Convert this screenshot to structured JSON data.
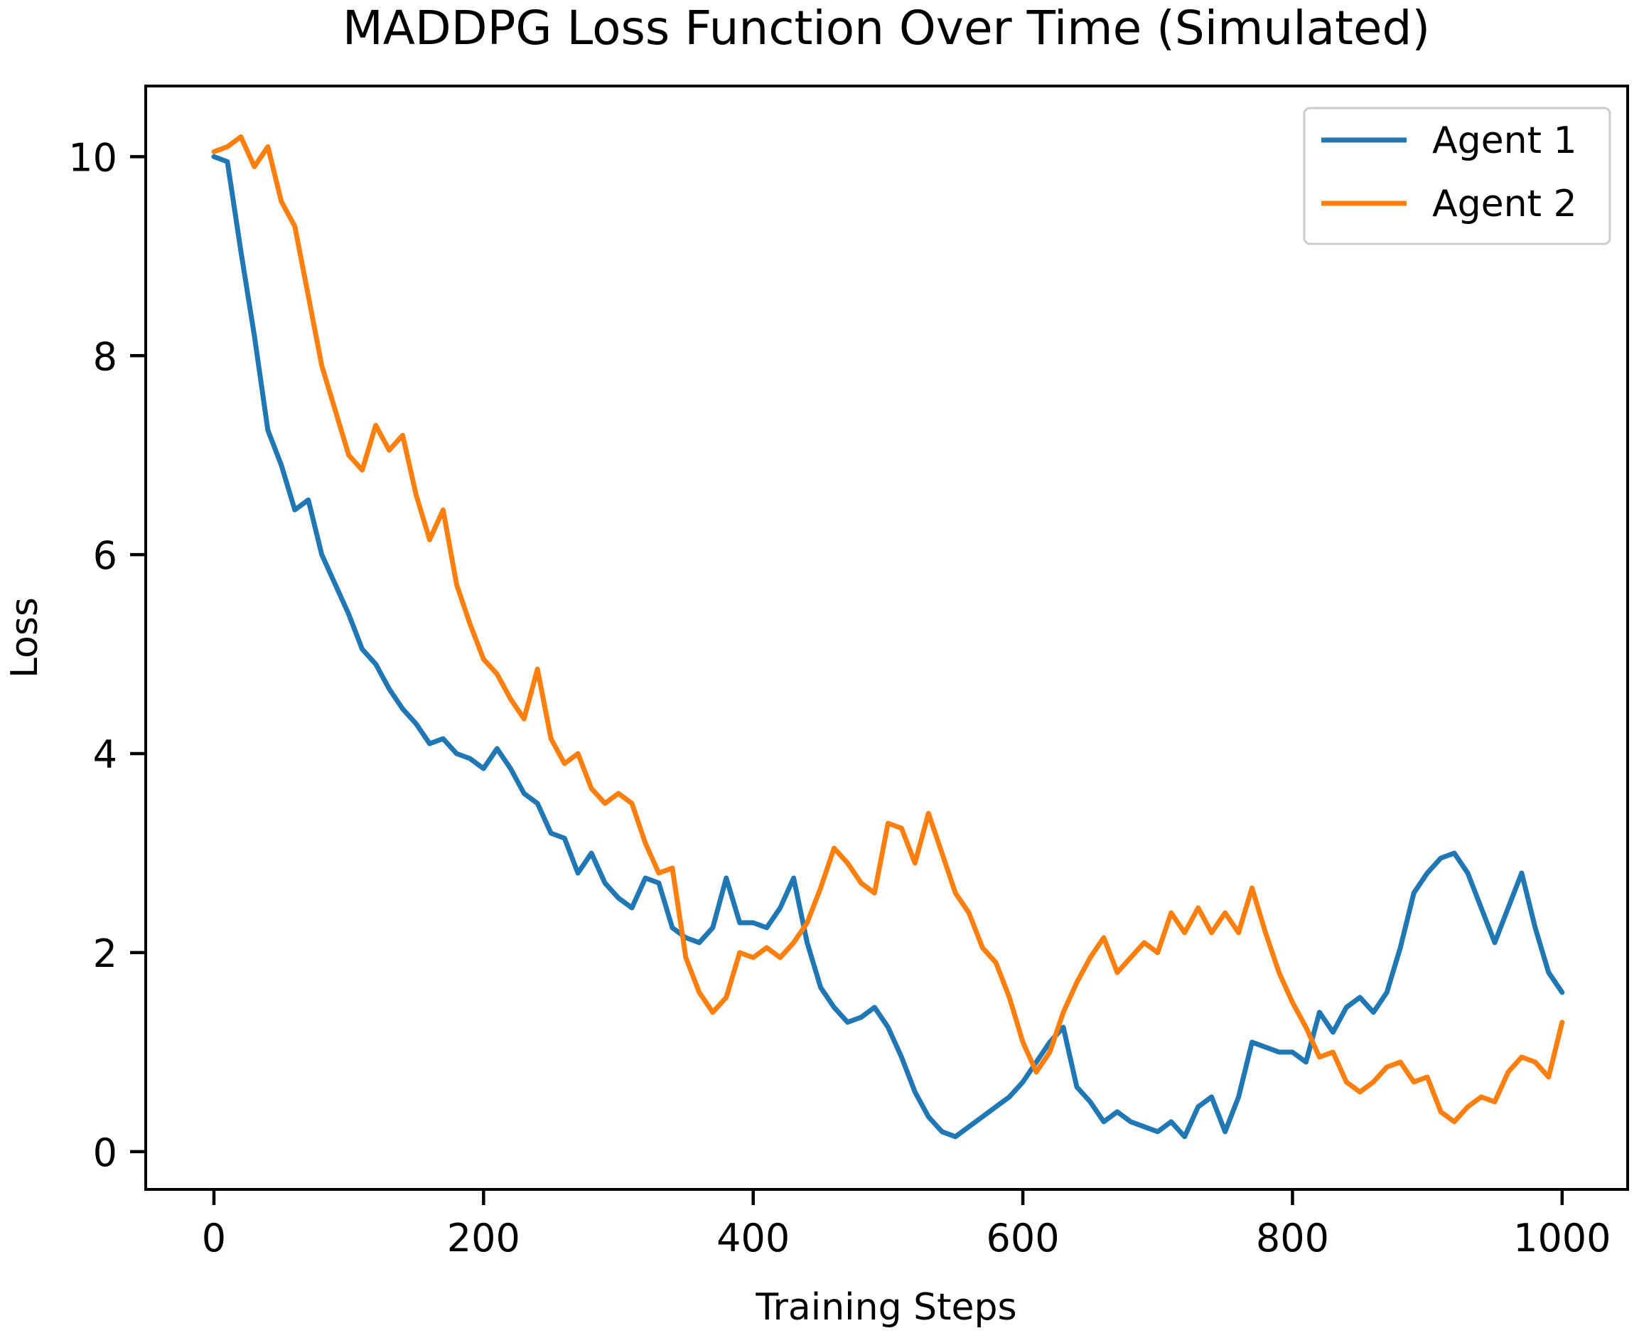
{
  "figure": {
    "title": "MADDPG Loss Function Over Time (Simulated)",
    "xlabel": "Training Steps",
    "ylabel": "Loss"
  },
  "legend": {
    "position": "upper right",
    "items": [
      {
        "label": "Agent 1",
        "color": "#1f77b4"
      },
      {
        "label": "Agent 2",
        "color": "#ff7f0e"
      }
    ]
  },
  "chart_data": {
    "type": "line",
    "title": "MADDPG Loss Function Over Time (Simulated)",
    "xlabel": "Training Steps",
    "ylabel": "Loss",
    "grid": false,
    "legend_position": "upper right",
    "xlim": [
      -50.6,
      1048.6
    ],
    "ylim": [
      -0.38,
      10.71
    ],
    "xticks": [
      0,
      200,
      400,
      600,
      800,
      1000
    ],
    "yticks": [
      0,
      2,
      4,
      6,
      8,
      10
    ],
    "background_color": "#ffffff",
    "spine_color": "#000000",
    "x": [
      0,
      10,
      20,
      30,
      40,
      50,
      60,
      70,
      80,
      90,
      100,
      110,
      120,
      130,
      140,
      150,
      160,
      170,
      180,
      190,
      200,
      210,
      220,
      230,
      240,
      250,
      260,
      270,
      280,
      290,
      300,
      310,
      320,
      330,
      340,
      350,
      360,
      370,
      380,
      390,
      400,
      410,
      420,
      430,
      440,
      450,
      460,
      470,
      480,
      490,
      500,
      510,
      520,
      530,
      540,
      550,
      560,
      570,
      580,
      590,
      600,
      610,
      620,
      630,
      640,
      650,
      660,
      670,
      680,
      690,
      700,
      710,
      720,
      730,
      740,
      750,
      760,
      770,
      780,
      790,
      800,
      810,
      820,
      830,
      840,
      850,
      860,
      870,
      880,
      890,
      900,
      910,
      920,
      930,
      940,
      950,
      960,
      970,
      980,
      990,
      1000
    ],
    "series": [
      {
        "name": "Agent 1",
        "color": "#1f77b4",
        "values": [
          10.0,
          9.95,
          9.05,
          8.2,
          7.25,
          6.9,
          6.45,
          6.55,
          6.0,
          5.7,
          5.4,
          5.05,
          4.9,
          4.65,
          4.45,
          4.3,
          4.1,
          4.15,
          4.0,
          3.95,
          3.85,
          4.05,
          3.85,
          3.6,
          3.5,
          3.2,
          3.15,
          2.8,
          3.0,
          2.7,
          2.55,
          2.45,
          2.75,
          2.7,
          2.25,
          2.15,
          2.1,
          2.25,
          2.75,
          2.3,
          2.3,
          2.25,
          2.45,
          2.75,
          2.1,
          1.65,
          1.45,
          1.3,
          1.35,
          1.45,
          1.25,
          0.95,
          0.6,
          0.35,
          0.2,
          0.15,
          0.25,
          0.35,
          0.45,
          0.55,
          0.7,
          0.9,
          1.1,
          1.25,
          0.65,
          0.5,
          0.3,
          0.4,
          0.3,
          0.25,
          0.2,
          0.3,
          0.15,
          0.45,
          0.55,
          0.2,
          0.55,
          1.1,
          1.05,
          1.0,
          1.0,
          0.9,
          1.4,
          1.2,
          1.45,
          1.55,
          1.4,
          1.6,
          2.05,
          2.6,
          2.8,
          2.95,
          3.0,
          2.8,
          2.45,
          2.1,
          2.45,
          2.8,
          2.25,
          1.8,
          1.6
        ]
      },
      {
        "name": "Agent 2",
        "color": "#ff7f0e",
        "values": [
          10.05,
          10.1,
          10.2,
          9.9,
          10.1,
          9.55,
          9.3,
          8.6,
          7.9,
          7.45,
          7.0,
          6.85,
          7.3,
          7.05,
          7.2,
          6.6,
          6.15,
          6.45,
          5.7,
          5.3,
          4.95,
          4.8,
          4.55,
          4.35,
          4.85,
          4.15,
          3.9,
          4.0,
          3.65,
          3.5,
          3.6,
          3.5,
          3.1,
          2.8,
          2.85,
          1.95,
          1.6,
          1.4,
          1.55,
          2.0,
          1.95,
          2.05,
          1.95,
          2.1,
          2.3,
          2.65,
          3.05,
          2.9,
          2.7,
          2.6,
          3.3,
          3.25,
          2.9,
          3.4,
          3.0,
          2.6,
          2.4,
          2.05,
          1.9,
          1.55,
          1.1,
          0.8,
          1.0,
          1.4,
          1.7,
          1.95,
          2.15,
          1.8,
          1.95,
          2.1,
          2.0,
          2.4,
          2.2,
          2.45,
          2.2,
          2.4,
          2.2,
          2.65,
          2.2,
          1.8,
          1.5,
          1.25,
          0.95,
          1.0,
          0.7,
          0.6,
          0.7,
          0.85,
          0.9,
          0.7,
          0.75,
          0.4,
          0.3,
          0.45,
          0.55,
          0.5,
          0.8,
          0.95,
          0.9,
          0.75,
          1.3
        ]
      }
    ]
  }
}
